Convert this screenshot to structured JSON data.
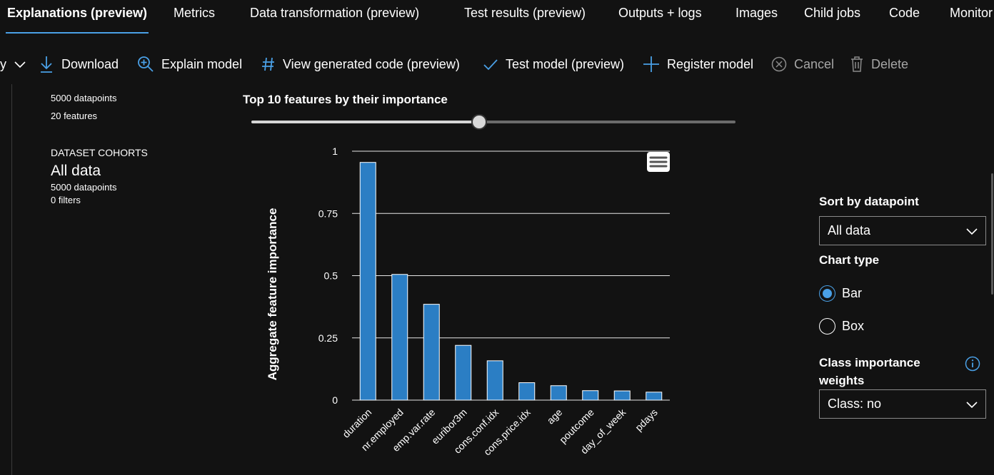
{
  "tabs": [
    {
      "label": "Explanations (preview)",
      "active": true
    },
    {
      "label": "Metrics"
    },
    {
      "label": "Data transformation (preview)"
    },
    {
      "label": "Test results (preview)"
    },
    {
      "label": "Outputs + logs"
    },
    {
      "label": "Images"
    },
    {
      "label": "Child jobs"
    },
    {
      "label": "Code"
    },
    {
      "label": "Monitor"
    }
  ],
  "toolbar": {
    "refresh_label": "y",
    "download": "Download",
    "explain_model": "Explain model",
    "view_code": "View generated code (preview)",
    "test_model": "Test model (preview)",
    "register_model": "Register model",
    "cancel": "Cancel",
    "delete": "Delete"
  },
  "dataset": {
    "datapoints": "5000 datapoints",
    "features": "20 features"
  },
  "cohorts": {
    "heading": "DATASET COHORTS",
    "name": "All data",
    "datapoints": "5000 datapoints",
    "filters": "0 filters"
  },
  "chart_panel": {
    "heading": "Top 10 features by their importance",
    "slider_fraction": 0.47
  },
  "chart_data": {
    "type": "bar",
    "categories": [
      "duration",
      "nr.employed",
      "emp.var.rate",
      "euribor3m",
      "cons.conf.idx",
      "cons.price.idx",
      "age",
      "poutcome",
      "day_of_week",
      "pdays"
    ],
    "values": [
      0.955,
      0.505,
      0.385,
      0.22,
      0.158,
      0.07,
      0.058,
      0.038,
      0.037,
      0.032
    ],
    "title": "",
    "xlabel": "",
    "ylabel": "Aggregate feature importance",
    "ylim": [
      0,
      1
    ],
    "yticks": [
      {
        "value": 0,
        "label": "0"
      },
      {
        "value": 0.25,
        "label": "0.25"
      },
      {
        "value": 0.5,
        "label": "0.5"
      },
      {
        "value": 0.75,
        "label": "0.75"
      },
      {
        "value": 1,
        "label": "1"
      }
    ],
    "grid": true,
    "bar_color": "#2b7ec4"
  },
  "sidebar": {
    "sort_label": "Sort by datapoint",
    "sort_value": "All data",
    "chart_type_label": "Chart type",
    "chart_types": [
      {
        "label": "Bar",
        "selected": true
      },
      {
        "label": "Box",
        "selected": false
      }
    ],
    "class_weights_label_1": "Class importance",
    "class_weights_label_2": "weights",
    "class_value": "Class: no"
  },
  "colors": {
    "background": "#121212",
    "accent": "#4aa0e6"
  }
}
